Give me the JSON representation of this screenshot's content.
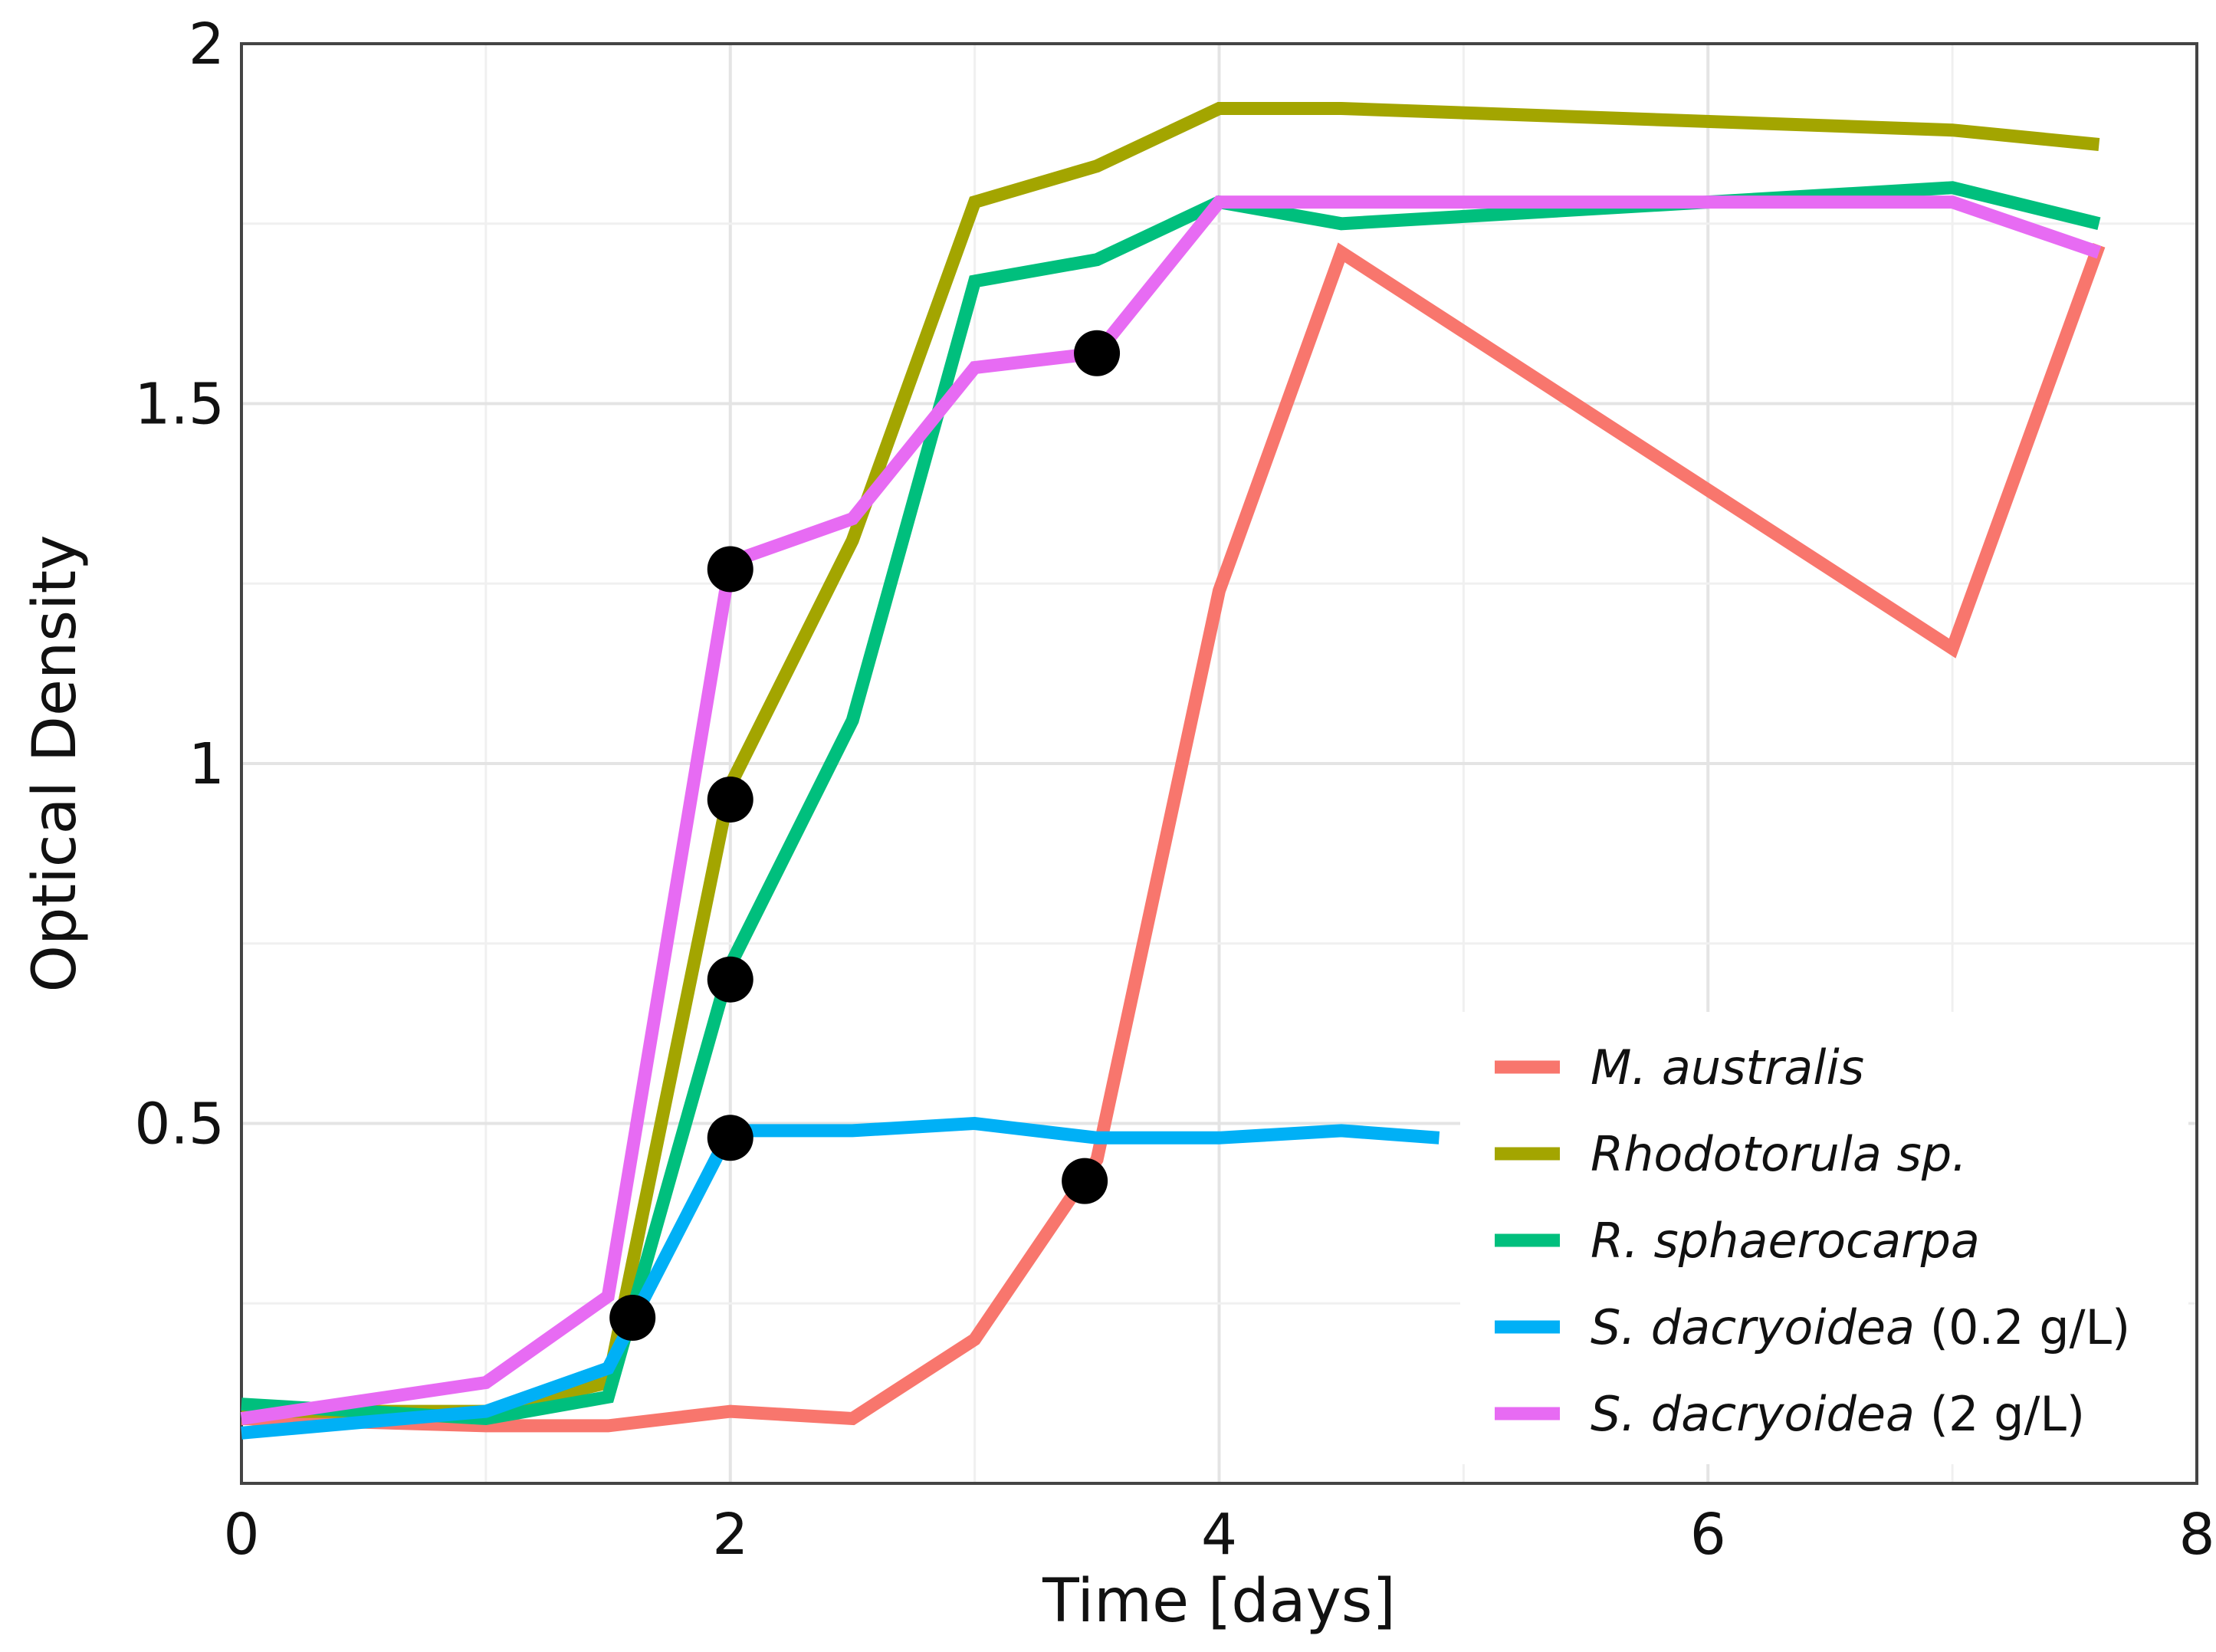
{
  "chart_data": {
    "type": "line",
    "title": "",
    "xlabel": "Time [days]",
    "ylabel": "Optical Density",
    "xlim": [
      0,
      8
    ],
    "ylim": [
      0,
      2
    ],
    "x_ticks": [
      "0",
      "2",
      "4",
      "6",
      "8"
    ],
    "y_ticks": [
      "0.5",
      "1",
      "1.5",
      "2"
    ],
    "grid": true,
    "legend_position": "bottom-right",
    "series": [
      {
        "name": "M. australis",
        "name_italic": "M. australis",
        "name_suffix": "",
        "color": "#F8766D",
        "x": [
          0,
          1,
          1.5,
          2,
          2.5,
          3,
          3.5,
          4,
          4.5,
          7,
          7.6
        ],
        "y": [
          0.09,
          0.08,
          0.08,
          0.1,
          0.09,
          0.2,
          0.45,
          1.24,
          1.71,
          1.16,
          1.72
        ]
      },
      {
        "name": "Rhodotorula sp.",
        "name_italic": "Rhodotorula sp.",
        "name_suffix": "",
        "color": "#A3A500",
        "x": [
          0,
          1,
          1.5,
          2,
          2.5,
          3,
          3.5,
          4,
          4.5,
          7,
          7.6
        ],
        "y": [
          0.1,
          0.1,
          0.14,
          0.97,
          1.31,
          1.78,
          1.83,
          1.91,
          1.91,
          1.88,
          1.86
        ]
      },
      {
        "name": "R. sphaerocarpa",
        "name_italic": "R. sphaerocarpa",
        "name_suffix": "",
        "color": "#00BF7D",
        "x": [
          0,
          1,
          1.5,
          2,
          2.5,
          3,
          3.5,
          4,
          4.5,
          7,
          7.6
        ],
        "y": [
          0.11,
          0.09,
          0.12,
          0.72,
          1.06,
          1.67,
          1.7,
          1.78,
          1.75,
          1.8,
          1.75
        ]
      },
      {
        "name": "S. dacryoidea (0.2 g/L)",
        "name_italic": "S. dacryoidea",
        "name_suffix": " (0.2 g/L)",
        "color": "#00B0F6",
        "x": [
          0,
          1,
          1.5,
          2,
          2.5,
          3,
          3.5,
          4,
          4.5,
          4.9
        ],
        "y": [
          0.07,
          0.1,
          0.16,
          0.49,
          0.49,
          0.5,
          0.48,
          0.48,
          0.49,
          0.48
        ]
      },
      {
        "name": "S. dacryoidea (2 g/L)",
        "name_italic": "S. dacryoidea",
        "name_suffix": " (2 g/L)",
        "color": "#E76BF3",
        "x": [
          0,
          1,
          1.5,
          2,
          2.5,
          3,
          3.5,
          4,
          4.5,
          7,
          7.6
        ],
        "y": [
          0.09,
          0.14,
          0.26,
          1.28,
          1.34,
          1.55,
          1.57,
          1.78,
          1.78,
          1.78,
          1.71
        ]
      }
    ],
    "markers": [
      {
        "x": 1.6,
        "y": 0.23
      },
      {
        "x": 2.0,
        "y": 1.27
      },
      {
        "x": 2.0,
        "y": 0.95
      },
      {
        "x": 2.0,
        "y": 0.7
      },
      {
        "x": 2.0,
        "y": 0.48
      },
      {
        "x": 3.45,
        "y": 0.42
      },
      {
        "x": 3.5,
        "y": 1.57
      }
    ]
  }
}
